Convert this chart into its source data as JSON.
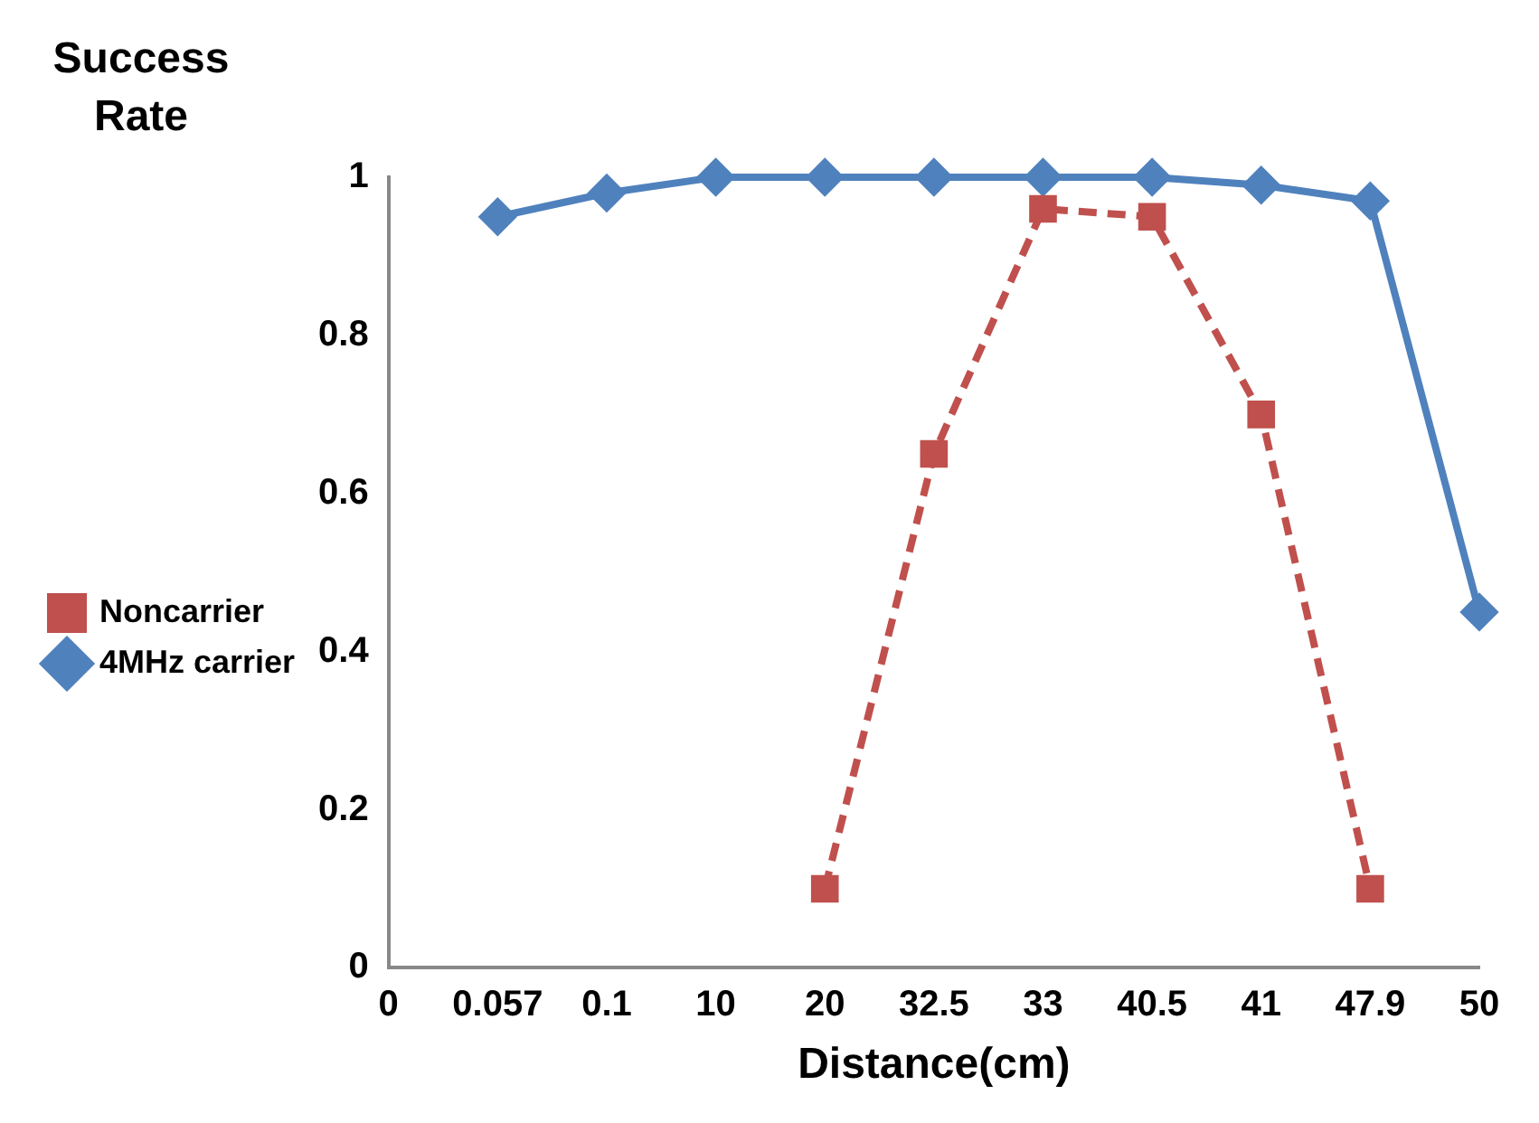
{
  "chart_data": {
    "type": "line",
    "ylabel": "Success Rate",
    "xlabel": "Distance(cm)",
    "categories": [
      "0",
      "0.057",
      "0.1",
      "10",
      "20",
      "32.5",
      "33",
      "40.5",
      "41",
      "47.9",
      "50"
    ],
    "series": [
      {
        "name": "Noncarrier",
        "color": "#c0504d",
        "line_style": "dashed",
        "marker": "square",
        "values": [
          null,
          null,
          null,
          null,
          0.1,
          0.65,
          0.96,
          0.95,
          0.7,
          0.1,
          null
        ]
      },
      {
        "name": "4MHz carrier",
        "color": "#4f81bd",
        "line_style": "solid",
        "marker": "diamond",
        "values": [
          null,
          0.95,
          0.98,
          1,
          1,
          1,
          1,
          1,
          0.99,
          0.97,
          0.45
        ]
      }
    ],
    "ylim": [
      0,
      1
    ],
    "yticks": [
      0,
      0.2,
      0.4,
      0.6,
      0.8,
      1
    ],
    "grid": false,
    "legend": "left"
  }
}
